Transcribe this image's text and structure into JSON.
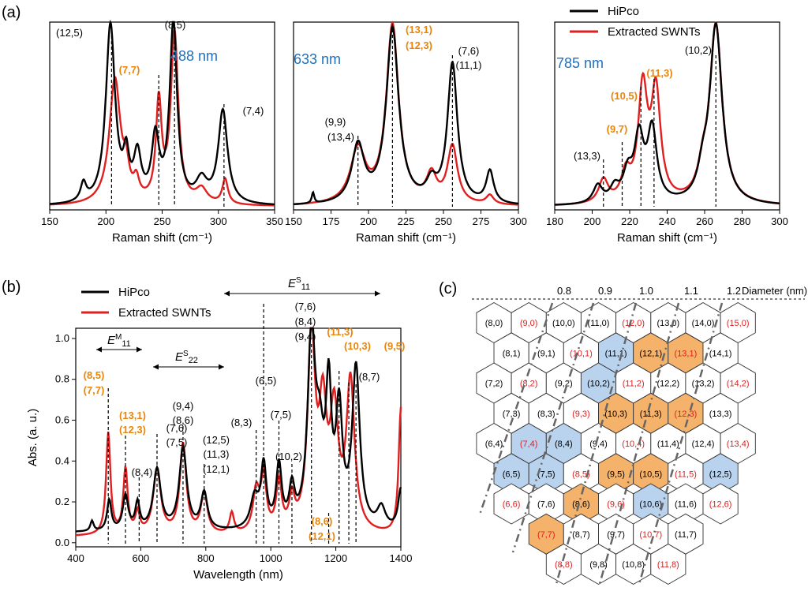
{
  "panel_labels": [
    "(a)",
    "(b)",
    "(c)"
  ],
  "legend": {
    "hipco": "HiPco",
    "extracted": "Extracted SWNTs",
    "hipco_color": "#000000",
    "extracted_color": "#e02020"
  },
  "colors": {
    "orange": "#e8860c",
    "blue": "#1f6fbf",
    "hex_orange": "#f5b26b",
    "hex_blue": "#b9d3ee",
    "red_text": "#e02020"
  },
  "chart_data": [
    {
      "type": "line",
      "id": "a1",
      "title": "488 nm",
      "xlabel": "Raman shift (cm⁻¹)",
      "xlim": [
        150,
        350
      ],
      "ylim": [
        0,
        1.05
      ],
      "xticks": [
        "150",
        "200",
        "250",
        "300",
        "350"
      ],
      "series": [
        {
          "name": "HiPco",
          "peaks": [
            [
              180,
              0.1,
              3
            ],
            [
              204,
              1.0,
              5
            ],
            [
              218,
              0.22,
              3
            ],
            [
              228,
              0.25,
              4
            ],
            [
              244,
              0.35,
              4
            ],
            [
              260,
              1.0,
              4
            ],
            [
              285,
              0.12,
              6
            ],
            [
              304,
              0.52,
              5
            ]
          ]
        },
        {
          "name": "Extracted SWNTs",
          "peaks": [
            [
              208,
              0.7,
              6
            ],
            [
              218,
              0.14,
              3
            ],
            [
              227,
              0.1,
              3
            ],
            [
              247,
              0.55,
              3
            ],
            [
              261,
              0.95,
              4
            ],
            [
              285,
              0.08,
              6
            ],
            [
              306,
              0.14,
              3
            ]
          ]
        }
      ],
      "annotations": [
        {
          "text": "(12,5)",
          "x": 204,
          "color": "black"
        },
        {
          "text": "(8,5)",
          "x": 261,
          "color": "black"
        },
        {
          "text": "(7,7)",
          "x": 247,
          "color": "orange"
        },
        {
          "text": "(7,4)",
          "x": 304,
          "color": "black"
        }
      ]
    },
    {
      "type": "line",
      "id": "a2",
      "title": "633 nm",
      "xlabel": "Raman shift (cm⁻¹)",
      "xlim": [
        150,
        300
      ],
      "ylim": [
        0,
        1.05
      ],
      "xticks": [
        "150",
        "175",
        "200",
        "225",
        "250",
        "275",
        "300"
      ],
      "series": [
        {
          "name": "HiPco",
          "peaks": [
            [
              163,
              0.06,
              1
            ],
            [
              193,
              0.32,
              5
            ],
            [
              216,
              0.98,
              5
            ],
            [
              242,
              0.1,
              4
            ],
            [
              256,
              0.78,
              4
            ],
            [
              281,
              0.18,
              3
            ]
          ]
        },
        {
          "name": "Extracted SWNTs",
          "peaks": [
            [
              193,
              0.3,
              6
            ],
            [
              216,
              1.0,
              5
            ],
            [
              242,
              0.15,
              4
            ],
            [
              256,
              0.32,
              4
            ],
            [
              281,
              0.05,
              3
            ]
          ]
        }
      ],
      "annotations": [
        {
          "text": "(9,9)",
          "x": 193,
          "color": "black"
        },
        {
          "text": "(13,4)",
          "x": 193,
          "color": "black"
        },
        {
          "text": "(13,1)",
          "x": 216,
          "color": "orange"
        },
        {
          "text": "(12,3)",
          "x": 216,
          "color": "orange"
        },
        {
          "text": "(7,6)",
          "x": 256,
          "color": "black"
        },
        {
          "text": "(11,1)",
          "x": 256,
          "color": "black"
        }
      ]
    },
    {
      "type": "line",
      "id": "a3",
      "title": "785 nm",
      "xlabel": "Raman shift (cm⁻¹)",
      "xlim": [
        180,
        300
      ],
      "ylim": [
        0,
        1.05
      ],
      "xticks": [
        "180",
        "200",
        "220",
        "240",
        "260",
        "280",
        "300"
      ],
      "series": [
        {
          "name": "HiPco",
          "peaks": [
            [
              203,
              0.1,
              3
            ],
            [
              212,
              0.08,
              3
            ],
            [
              219,
              0.15,
              3
            ],
            [
              225,
              0.35,
              3
            ],
            [
              232,
              0.4,
              3
            ],
            [
              259,
              0.12,
              3
            ],
            [
              266,
              1.0,
              4
            ]
          ]
        },
        {
          "name": "Extracted SWNTs",
          "peaks": [
            [
              206,
              0.13,
              3
            ],
            [
              218,
              0.15,
              3
            ],
            [
              227,
              0.62,
              3
            ],
            [
              234,
              0.6,
              3
            ],
            [
              259,
              0.12,
              3
            ],
            [
              266,
              1.0,
              4
            ]
          ]
        }
      ],
      "annotations": [
        {
          "text": "(10,2)",
          "x": 266,
          "color": "black"
        },
        {
          "text": "(11,3)",
          "x": 233,
          "color": "orange"
        },
        {
          "text": "(10,5)",
          "x": 226,
          "color": "orange"
        },
        {
          "text": "(9,7)",
          "x": 216,
          "color": "orange"
        },
        {
          "text": "(13,3)",
          "x": 206,
          "color": "black"
        }
      ]
    },
    {
      "type": "line",
      "id": "b",
      "xlabel": "Wavelength (nm)",
      "ylabel": "Abs. (a. u.)",
      "xlim": [
        400,
        1400
      ],
      "ylim": [
        -0.02,
        1.05
      ],
      "xticks": [
        "400",
        "600",
        "800",
        "1000",
        "1200",
        "1400"
      ],
      "yticks": [
        "0.0",
        "0.2",
        "0.4",
        "0.6",
        "0.8",
        "1.0"
      ],
      "series": [
        {
          "name": "HiPco",
          "baseline": 0.05,
          "peaks": [
            [
              450,
              0.05,
              6
            ],
            [
              503,
              0.15,
              8
            ],
            [
              553,
              0.17,
              10
            ],
            [
              590,
              0.13,
              8
            ],
            [
              650,
              0.3,
              14
            ],
            [
              730,
              0.4,
              14
            ],
            [
              795,
              0.18,
              12
            ],
            [
              950,
              0.15,
              15
            ],
            [
              978,
              0.3,
              10
            ],
            [
              1025,
              0.3,
              10
            ],
            [
              1065,
              0.18,
              10
            ],
            [
              1125,
              0.92,
              14
            ],
            [
              1150,
              0.35,
              15
            ],
            [
              1178,
              0.62,
              10
            ],
            [
              1210,
              0.55,
              12
            ],
            [
              1262,
              0.78,
              14
            ],
            [
              1340,
              0.1,
              15
            ],
            [
              1400,
              0.2,
              10
            ]
          ]
        },
        {
          "name": "Extracted SWNTs",
          "baseline": 0.03,
          "peaks": [
            [
              500,
              0.5,
              8
            ],
            [
              553,
              0.32,
              8
            ],
            [
              590,
              0.1,
              8
            ],
            [
              650,
              0.32,
              14
            ],
            [
              730,
              0.44,
              12
            ],
            [
              795,
              0.2,
              12
            ],
            [
              880,
              0.1,
              8
            ],
            [
              955,
              0.2,
              12
            ],
            [
              978,
              0.26,
              10
            ],
            [
              1025,
              0.24,
              10
            ],
            [
              1065,
              0.15,
              10
            ],
            [
              1125,
              0.95,
              14
            ],
            [
              1160,
              0.55,
              14
            ],
            [
              1195,
              0.55,
              15
            ],
            [
              1245,
              0.73,
              15
            ],
            [
              1400,
              0.62,
              8
            ]
          ]
        }
      ],
      "annotations": [
        {
          "text": "(8,5)",
          "x": 500,
          "color": "orange"
        },
        {
          "text": "(7,7)",
          "x": 500,
          "color": "orange"
        },
        {
          "text": "(13,1)",
          "x": 553,
          "color": "orange"
        },
        {
          "text": "(12,3)",
          "x": 553,
          "color": "orange"
        },
        {
          "text": "(8,4)",
          "x": 595,
          "color": "black"
        },
        {
          "text": "(7,6)",
          "x": 650,
          "color": "black"
        },
        {
          "text": "(7,5)",
          "x": 650,
          "color": "black"
        },
        {
          "text": "(9,4)",
          "x": 730,
          "color": "black"
        },
        {
          "text": "(8,6)",
          "x": 730,
          "color": "black"
        },
        {
          "text": "(12,5)",
          "x": 795,
          "color": "black"
        },
        {
          "text": "(11,3)",
          "x": 795,
          "color": "black"
        },
        {
          "text": "(12,1)",
          "x": 795,
          "color": "black"
        },
        {
          "text": "(8,3)",
          "x": 955,
          "color": "black"
        },
        {
          "text": "(6,5)",
          "x": 978,
          "color": "black"
        },
        {
          "text": "(7,5)",
          "x": 1025,
          "color": "black"
        },
        {
          "text": "(10,2)",
          "x": 1065,
          "color": "black"
        },
        {
          "text": "(7,6)",
          "x": 1125,
          "color": "black"
        },
        {
          "text": "(8,4)",
          "x": 1125,
          "color": "black"
        },
        {
          "text": "(9,4)",
          "x": 1125,
          "color": "black"
        },
        {
          "text": "(11,3)",
          "x": 1210,
          "color": "orange"
        },
        {
          "text": "(10,3)",
          "x": 1240,
          "color": "orange"
        },
        {
          "text": "(9,5)",
          "x": 1290,
          "color": "orange"
        },
        {
          "text": "(8,7)",
          "x": 1262,
          "color": "black"
        },
        {
          "text": "(8,6)",
          "x": 1178,
          "color": "orange"
        },
        {
          "text": "(12,1)",
          "x": 1178,
          "color": "orange"
        }
      ],
      "region_labels": {
        "m11": "E",
        "m11_sup": "M",
        "m11_sub": "11",
        "s22": "E",
        "s22_sup": "S",
        "s22_sub": "22",
        "s11": "E",
        "s11_sup": "S",
        "s11_sub": "11"
      }
    }
  ],
  "chirality_map": {
    "diameter_label": "Diameter (nm)",
    "diameters": [
      "0.8",
      "0.9",
      "1.0",
      "1.1",
      "1.2"
    ],
    "rows": [
      [
        [
          "(8,0)",
          "k",
          "w"
        ],
        [
          "(9,0)",
          "r",
          "w"
        ],
        [
          "(10,0)",
          "k",
          "w"
        ],
        [
          "(11,0)",
          "k",
          "w"
        ],
        [
          "(12,0)",
          "r",
          "w"
        ],
        [
          "(13,0)",
          "k",
          "w"
        ],
        [
          "(14,0)",
          "k",
          "w"
        ],
        [
          "(15,0)",
          "r",
          "w"
        ]
      ],
      [
        [
          "(8,1)",
          "k",
          "w"
        ],
        [
          "(9,1)",
          "k",
          "w"
        ],
        [
          "(10,1)",
          "r",
          "w"
        ],
        [
          "(11,1)",
          "k",
          "b"
        ],
        [
          "(12,1)",
          "k",
          "o"
        ],
        [
          "(13,1)",
          "r",
          "o"
        ],
        [
          "(14,1)",
          "k",
          "w"
        ]
      ],
      [
        [
          "(7,2)",
          "k",
          "w"
        ],
        [
          "(8,2)",
          "r",
          "w"
        ],
        [
          "(9,2)",
          "k",
          "w"
        ],
        [
          "(10,2)",
          "k",
          "b"
        ],
        [
          "(11,2)",
          "r",
          "w"
        ],
        [
          "(12,2)",
          "k",
          "w"
        ],
        [
          "(13,2)",
          "k",
          "w"
        ],
        [
          "(14,2)",
          "r",
          "w"
        ]
      ],
      [
        [
          "(7,3)",
          "k",
          "w"
        ],
        [
          "(8,3)",
          "k",
          "w"
        ],
        [
          "(9,3)",
          "r",
          "w"
        ],
        [
          "(10,3)",
          "k",
          "o"
        ],
        [
          "(11,3)",
          "k",
          "o"
        ],
        [
          "(12,3)",
          "r",
          "o"
        ],
        [
          "(13,3)",
          "k",
          "w"
        ]
      ],
      [
        [
          "(6,4)",
          "k",
          "w"
        ],
        [
          "(7,4)",
          "r",
          "b"
        ],
        [
          "(8,4)",
          "k",
          "b"
        ],
        [
          "(9,4)",
          "k",
          "w"
        ],
        [
          "(10,4)",
          "r",
          "w"
        ],
        [
          "(11,4)",
          "k",
          "w"
        ],
        [
          "(12,4)",
          "k",
          "w"
        ],
        [
          "(13,4)",
          "r",
          "w"
        ]
      ],
      [
        [
          "(6,5)",
          "k",
          "b"
        ],
        [
          "(7,5)",
          "k",
          "b"
        ],
        [
          "(8,5)",
          "r",
          "w"
        ],
        [
          "(9,5)",
          "k",
          "o"
        ],
        [
          "(10,5)",
          "k",
          "o"
        ],
        [
          "(11,5)",
          "r",
          "w"
        ],
        [
          "(12,5)",
          "k",
          "b"
        ]
      ],
      [
        [
          "(6,6)",
          "r",
          "w"
        ],
        [
          "(7,6)",
          "k",
          "w"
        ],
        [
          "(8,6)",
          "k",
          "o"
        ],
        [
          "(9,6)",
          "r",
          "w"
        ],
        [
          "(10,6)",
          "k",
          "b"
        ],
        [
          "(11,6)",
          "k",
          "w"
        ],
        [
          "(12,6)",
          "r",
          "w"
        ]
      ],
      [
        [
          "(7,7)",
          "r",
          "o"
        ],
        [
          "(8,7)",
          "k",
          "w"
        ],
        [
          "(9,7)",
          "k",
          "w"
        ],
        [
          "(10,7)",
          "r",
          "w"
        ],
        [
          "(11,7)",
          "k",
          "w"
        ]
      ],
      [
        [
          "(8,8)",
          "r",
          "w"
        ],
        [
          "(9,8)",
          "k",
          "w"
        ],
        [
          "(10,8)",
          "k",
          "w"
        ],
        [
          "(11,8)",
          "r",
          "w"
        ]
      ]
    ]
  }
}
